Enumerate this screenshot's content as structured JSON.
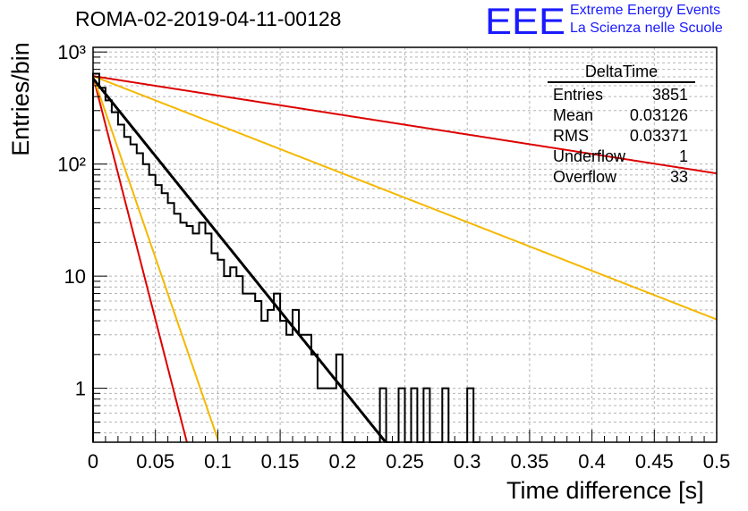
{
  "header": {
    "title": "ROMA-02-2019-04-11-00128",
    "logo_letters": "EEE",
    "logo_line1": "Extreme Energy Events",
    "logo_line2": "La Scienza nelle Scuole"
  },
  "stats_box": {
    "title": "DeltaTime",
    "rows": [
      {
        "label": "Entries",
        "value": "3851"
      },
      {
        "label": "Mean",
        "value": "0.03126"
      },
      {
        "label": "RMS",
        "value": "0.03371"
      },
      {
        "label": "Underflow",
        "value": "1"
      },
      {
        "label": "Overflow",
        "value": "33"
      }
    ]
  },
  "chart_data": {
    "type": "histogram",
    "xlabel": "Time difference [s]",
    "ylabel": "Entries/bin",
    "xlim": [
      0,
      0.5
    ],
    "ylim": [
      0.33,
      1100
    ],
    "yscale": "log",
    "grid": true,
    "x_ticks": [
      "0",
      "0.05",
      "0.1",
      "0.15",
      "0.2",
      "0.25",
      "0.3",
      "0.35",
      "0.4",
      "0.45",
      "0.5"
    ],
    "x_tick_values": [
      0,
      0.05,
      0.1,
      0.15,
      0.2,
      0.25,
      0.3,
      0.35,
      0.4,
      0.45,
      0.5
    ],
    "y_ticks": [
      "1",
      "10",
      "10²",
      "10³"
    ],
    "y_tick_values": [
      1,
      10,
      100,
      1000
    ],
    "bin_width": 0.005,
    "bin_edges_start": 0,
    "bin_values": [
      640,
      480,
      370,
      290,
      225,
      175,
      150,
      125,
      100,
      80,
      65,
      55,
      45,
      36,
      30,
      28,
      24,
      30,
      24,
      16,
      14,
      10,
      12,
      10,
      7,
      7,
      6,
      4,
      5,
      7,
      4,
      3,
      5,
      3,
      3,
      2,
      1,
      1,
      1,
      2,
      0,
      0,
      0,
      0,
      0,
      0,
      1,
      0,
      0,
      1,
      0,
      1,
      0,
      1,
      0,
      0,
      1,
      0,
      0,
      0,
      1,
      0
    ],
    "series": [
      {
        "kind": "fit",
        "color": "#000000",
        "amplitude": 580,
        "tau": 0.0314,
        "x_end": 0.235
      },
      {
        "kind": "reference",
        "color": "#dd0000",
        "amplitude": 610,
        "tau": 0.01,
        "x_end": 0.08
      },
      {
        "kind": "reference",
        "color": "#f5b800",
        "amplitude": 610,
        "tau": 0.0134,
        "x_end": 0.1
      },
      {
        "kind": "reference",
        "color": "#f5b800",
        "amplitude": 610,
        "tau": 0.1,
        "x_end": 0.5
      },
      {
        "kind": "reference",
        "color": "#dd0000",
        "amplitude": 610,
        "tau": 0.25,
        "x_end": 0.5
      }
    ]
  }
}
